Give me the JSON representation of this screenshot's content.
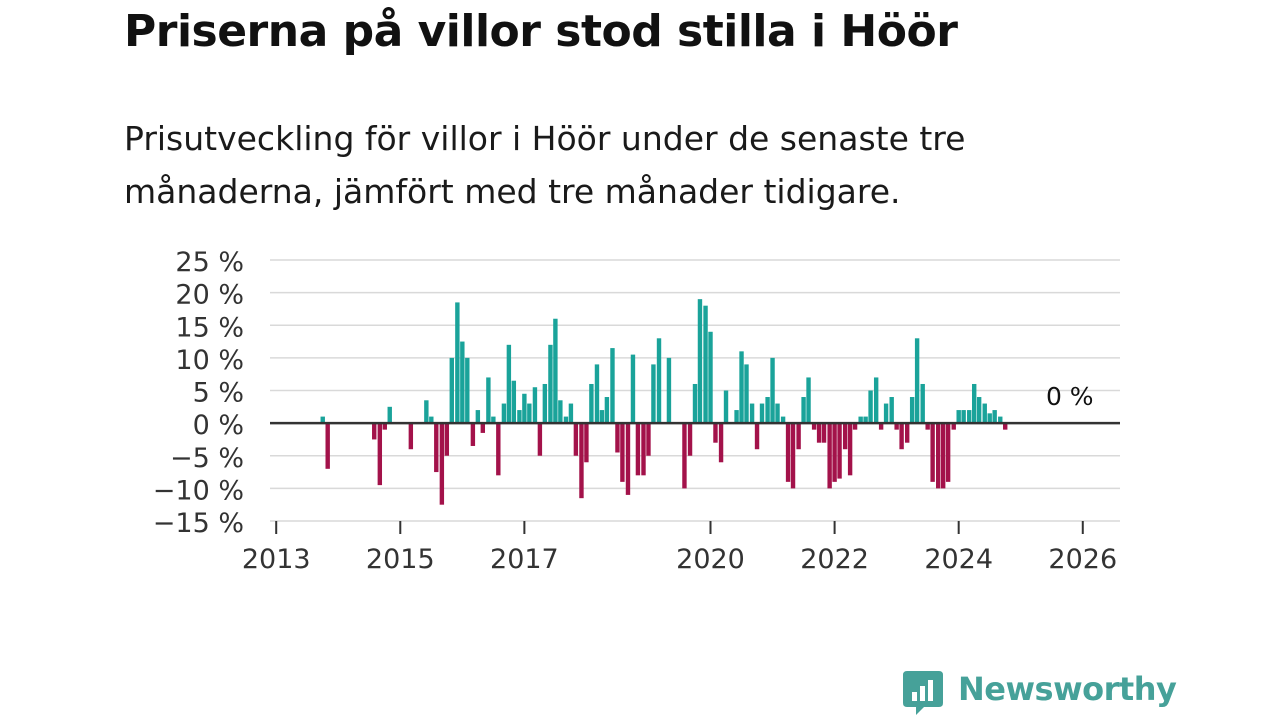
{
  "title": "Priserna på villor stod stilla i Höör",
  "subtitle": "Prisutveckling för villor i Höör under de senaste tre månaderna, jämfört med tre månader tidigare.",
  "brand": {
    "name": "Newsworthy",
    "icon": "newsworthy-logo-icon",
    "color": "#46a199"
  },
  "chart_data": {
    "type": "bar",
    "x_unit": "decimal-year",
    "x_range": [
      2012.9,
      2026.6
    ],
    "ylim": [
      -15,
      25
    ],
    "y_ticks": [
      -15,
      -10,
      -5,
      0,
      5,
      10,
      15,
      20,
      25
    ],
    "y_tick_labels": [
      "−15 %",
      "−10 %",
      "−5 %",
      "0 %",
      "5 %",
      "10 %",
      "15 %",
      "20 %",
      "25 %"
    ],
    "x_ticks": [
      2013,
      2015,
      2017,
      2020,
      2022,
      2024,
      2026
    ],
    "x_tick_labels": [
      "2013",
      "2015",
      "2017",
      "2020",
      "2022",
      "2024",
      "2026"
    ],
    "colors": {
      "positive": "#1aa39a",
      "negative": "#a3124a",
      "zero_line": "#333333",
      "grid": "#d9d9d9"
    },
    "annotation": {
      "text": "0 %",
      "x": 2025.6,
      "y": 0
    },
    "x": [
      2013.75,
      2013.83,
      2014.58,
      2014.67,
      2014.75,
      2014.83,
      2015.17,
      2015.42,
      2015.5,
      2015.58,
      2015.67,
      2015.75,
      2015.83,
      2015.92,
      2016.0,
      2016.08,
      2016.17,
      2016.25,
      2016.33,
      2016.42,
      2016.5,
      2016.58,
      2016.67,
      2016.75,
      2016.83,
      2016.92,
      2017.0,
      2017.08,
      2017.17,
      2017.25,
      2017.33,
      2017.42,
      2017.5,
      2017.58,
      2017.67,
      2017.75,
      2017.83,
      2017.92,
      2018.0,
      2018.08,
      2018.17,
      2018.25,
      2018.33,
      2018.42,
      2018.5,
      2018.58,
      2018.67,
      2018.75,
      2018.83,
      2018.92,
      2019.0,
      2019.08,
      2019.17,
      2019.33,
      2019.58,
      2019.67,
      2019.75,
      2019.83,
      2019.92,
      2020.0,
      2020.08,
      2020.17,
      2020.25,
      2020.42,
      2020.5,
      2020.58,
      2020.67,
      2020.75,
      2020.83,
      2020.92,
      2021.0,
      2021.08,
      2021.17,
      2021.25,
      2021.33,
      2021.42,
      2021.5,
      2021.58,
      2021.67,
      2021.75,
      2021.83,
      2021.92,
      2022.0,
      2022.08,
      2022.17,
      2022.25,
      2022.33,
      2022.42,
      2022.5,
      2022.58,
      2022.67,
      2022.75,
      2022.83,
      2022.92,
      2023.0,
      2023.08,
      2023.17,
      2023.25,
      2023.33,
      2023.42,
      2023.5,
      2023.58,
      2023.67,
      2023.75,
      2023.83,
      2023.92,
      2024.0,
      2024.08,
      2024.17,
      2024.25,
      2024.33,
      2024.42,
      2024.5,
      2024.58,
      2024.67,
      2024.75,
      2024.83,
      2024.92,
      2025.0,
      2025.08,
      2025.17,
      2025.25,
      2025.33,
      2025.42,
      2025.5,
      2025.58,
      2025.67,
      2025.75
    ],
    "values": [
      1.0,
      -7.0,
      -2.5,
      -9.5,
      -1.0,
      2.5,
      -4.0,
      3.5,
      1.0,
      -7.5,
      -12.5,
      -5.0,
      10.0,
      18.5,
      12.5,
      10.0,
      -3.5,
      2.0,
      -1.5,
      7.0,
      1.0,
      -8.0,
      3.0,
      12.0,
      6.5,
      2.0,
      4.5,
      3.0,
      5.5,
      -5.0,
      6.0,
      12.0,
      16.0,
      3.5,
      1.0,
      3.0,
      -5.0,
      -11.5,
      -6.0,
      6.0,
      9.0,
      2.0,
      4.0,
      11.5,
      -4.5,
      -9.0,
      -11.0,
      10.5,
      -8.0,
      -8.0,
      -5.0,
      9.0,
      13.0,
      10.0,
      -10.0,
      -5.0,
      6.0,
      19.0,
      18.0,
      14.0,
      -3.0,
      -6.0,
      5.0,
      2.0,
      11.0,
      9.0,
      3.0,
      -4.0,
      3.0,
      4.0,
      10.0,
      3.0,
      1.0,
      -9.0,
      -10.0,
      -4.0,
      4.0,
      7.0,
      -1.0,
      -3.0,
      -3.0,
      -10.0,
      -9.0,
      -8.5,
      -4.0,
      -8.0,
      -1.0,
      1.0,
      1.0,
      5.0,
      7.0,
      -1.0,
      3.0,
      4.0,
      -1.0,
      -4.0,
      -3.0,
      4.0,
      13.0,
      6.0,
      -1.0,
      -9.0,
      -10.0,
      -10.0,
      -9.0,
      -1.0,
      2.0,
      2.0,
      2.0,
      6.0,
      4.0,
      3.0,
      1.5,
      2.0,
      1.0,
      -1.0,
      0.0,
      0.0,
      0.0,
      0.0,
      0.0,
      0.0,
      0.0,
      0.0,
      0.0,
      0.0,
      0.0,
      0.0
    ]
  }
}
